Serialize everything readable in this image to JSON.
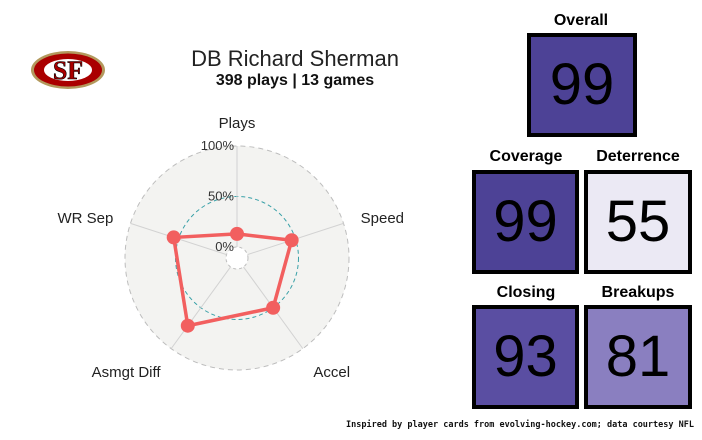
{
  "header": {
    "title": "DB Richard Sherman",
    "subtitle": "398 plays | 13 games"
  },
  "logo": {
    "text": "SF",
    "icon": "49ers-logo-icon",
    "colors": {
      "red": "#aa0000",
      "gold": "#b3995d"
    }
  },
  "chart_data": {
    "type": "radar",
    "axes": [
      "Plays",
      "Speed",
      "Accel",
      "Asmgt Diff",
      "WR Sep"
    ],
    "radial_ticks": [
      "0%",
      "50%",
      "100%"
    ],
    "values": [
      13,
      46,
      50,
      72,
      55
    ],
    "series_color": "#f25f5f",
    "reference_circle_color": "#3aa1a8"
  },
  "stats": {
    "overall": {
      "label": "Overall",
      "value": "99",
      "color": "#4d4296"
    },
    "coverage": {
      "label": "Coverage",
      "value": "99",
      "color": "#4d4296"
    },
    "deterrence": {
      "label": "Deterrence",
      "value": "55",
      "color": "#ebe9f4"
    },
    "closing": {
      "label": "Closing",
      "value": "93",
      "color": "#5a4ea2"
    },
    "breakups": {
      "label": "Breakups",
      "value": "81",
      "color": "#8a7fc0"
    }
  },
  "footer": {
    "credit": "Inspired by player cards from evolving-hockey.com; data courtesy NFL"
  }
}
